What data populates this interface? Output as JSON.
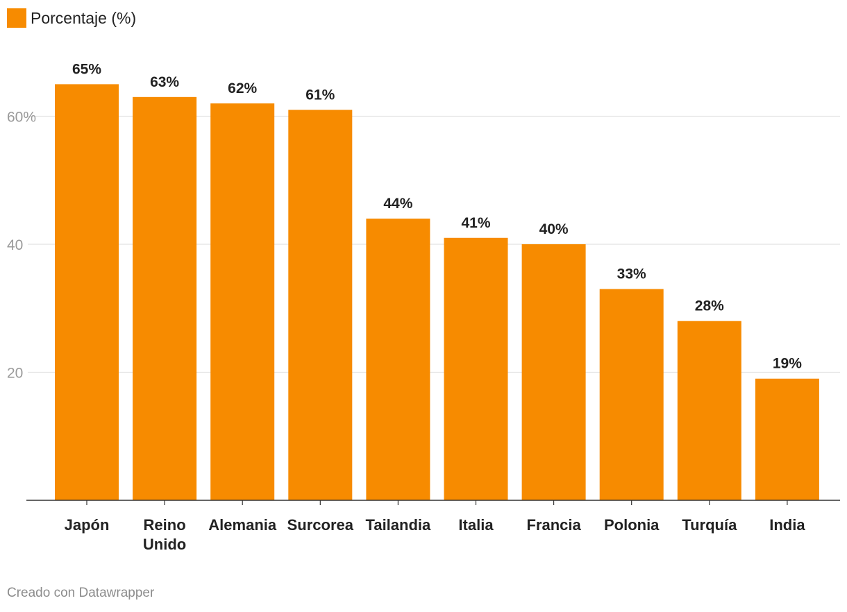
{
  "legend": {
    "label": "Porcentaje (%)",
    "color": "#f78b00"
  },
  "footer": {
    "credit": "Creado con Datawrapper"
  },
  "chart_data": {
    "type": "bar",
    "categories": [
      "Japón",
      "Reino\nUnido",
      "Alemania",
      "Surcorea",
      "Tailandia",
      "Italia",
      "Francia",
      "Polonia",
      "Turquía",
      "India"
    ],
    "series": [
      {
        "name": "Porcentaje (%)",
        "values": [
          65,
          63,
          62,
          61,
          44,
          41,
          40,
          33,
          28,
          19
        ]
      }
    ],
    "value_labels": [
      "65%",
      "63%",
      "62%",
      "61%",
      "44%",
      "41%",
      "40%",
      "33%",
      "28%",
      "19%"
    ],
    "y_ticks": [
      20,
      40,
      60
    ],
    "y_tick_labels": [
      "20",
      "40",
      "60%"
    ],
    "ylim": [
      0,
      65
    ],
    "xlabel": "",
    "ylabel": "",
    "grid": true,
    "legend_position": "top-left",
    "colors": {
      "bar": "#f78b00",
      "grid": "#e2e2e2",
      "baseline": "#333333",
      "tick_label": "#9a9a9a",
      "label": "#222222"
    }
  }
}
